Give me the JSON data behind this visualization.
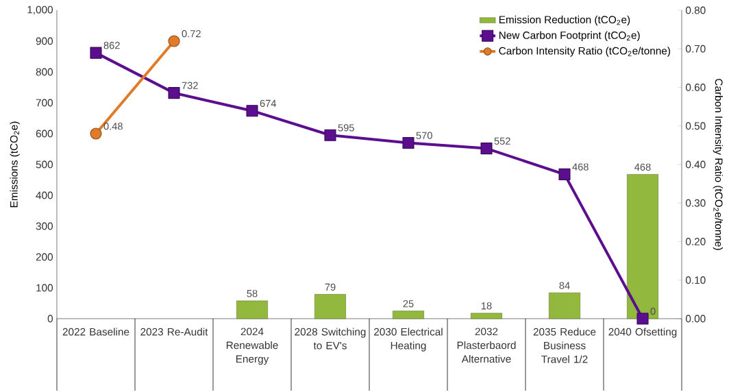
{
  "chart_data": {
    "type": "bar",
    "categories": [
      "2022 Baseline",
      "2023 Re-Audit",
      "2024 Renewable Energy",
      "2028 Switching to EV's",
      "2030 Electrical Heating",
      "2032 Plasterbaord Alternative",
      "2035 Reduce Business Travel 1/2",
      "2040 Ofsetting"
    ],
    "ylabel": "Emissions (tCO$_{2}$e)",
    "y2label": "Carbon Intensity Ratio (tCO$_{2}$e/tonne)",
    "series": [
      {
        "name": "Emission Reduction (tCO$_{2}$e)",
        "color": "#92b83e",
        "values": [
          null,
          null,
          58,
          79,
          25,
          18,
          84,
          468
        ]
      },
      {
        "name": "New Carbon Footprint (tCO$_{2}$e)",
        "type": "line",
        "color": "#5b0f8f",
        "marker": "square",
        "values": [
          862,
          732,
          674,
          595,
          570,
          552,
          468,
          0
        ]
      },
      {
        "name": "Carbon Intensity Ratio (tCO$_{2}$e/tonne)",
        "type": "line",
        "color": "#e07b2a",
        "marker": "circle",
        "axis": "y2",
        "values": [
          0.48,
          0.72,
          null,
          null,
          null,
          null,
          null,
          null
        ]
      }
    ],
    "ylim": [
      0,
      1000
    ],
    "yticks": [
      0,
      100,
      200,
      300,
      400,
      500,
      600,
      700,
      800,
      900,
      {
        "value": 1000,
        "label": "1,000"
      }
    ],
    "y2lim": [
      0,
      0.8
    ],
    "y2ticks": [
      {
        "value": 0,
        "label": "0.00"
      },
      {
        "value": 0.1,
        "label": "0.10"
      },
      {
        "value": 0.2,
        "label": "0.20"
      },
      {
        "value": 0.3,
        "label": "0.30"
      },
      {
        "value": 0.4,
        "label": "0.40"
      },
      {
        "value": 0.5,
        "label": "0.50"
      },
      {
        "value": 0.6,
        "label": "0.60"
      },
      {
        "value": 0.7,
        "label": "0.70"
      },
      {
        "value": 0.8,
        "label": "0.80"
      }
    ],
    "data_labels": true,
    "legend": "top right"
  }
}
